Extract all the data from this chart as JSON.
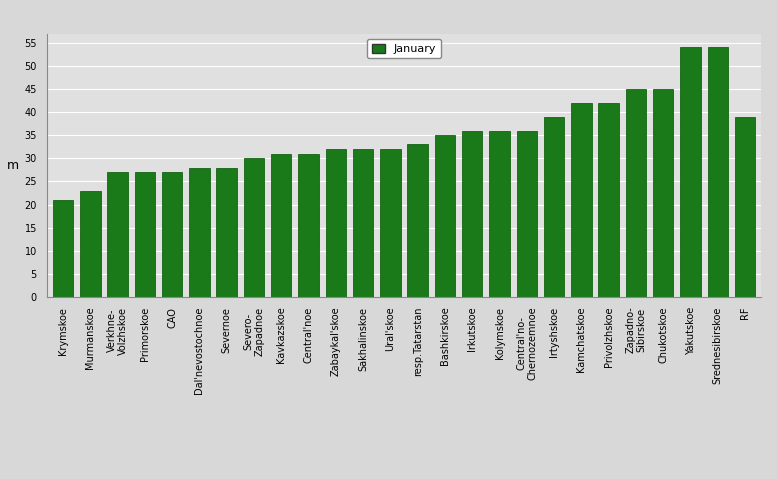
{
  "categories": [
    "Krymskoe",
    "Murmanskoe",
    "Verkhne-\nVolzhskoe",
    "Primorskoe",
    "CAO",
    "Dal'nevostochnoe",
    "Severnoe",
    "Severo-\nZapadnoe",
    "Kavkazskoe",
    "Central'noe",
    "Zabaykal'skoe",
    "Sakhalinskoe",
    "Ural'skoe",
    "resp.Tatarstan",
    "Bashkirskoe",
    "Irkutskoe",
    "Kolymskoe",
    "Central'no-\nChernozemnoe",
    "Irtyshskoe",
    "Kamchatskoe",
    "Privolzhskoe",
    "Zapadno-\nSibirskoe",
    "Chukotskoe",
    "Yakutskoe",
    "Srednesibirskoe",
    "RF"
  ],
  "values": [
    21,
    23,
    27,
    27,
    27,
    28,
    28,
    30,
    31,
    31,
    32,
    32,
    32,
    33,
    35,
    36,
    36,
    36,
    39,
    42,
    42,
    45,
    45,
    54,
    54,
    39
  ],
  "bar_color": "#1a7a1a",
  "bar_edge_color": "#005500",
  "ylabel": "m",
  "ylim": [
    0,
    57
  ],
  "yticks": [
    0,
    5,
    10,
    15,
    20,
    25,
    30,
    35,
    40,
    45,
    50,
    55
  ],
  "legend_label": "January",
  "legend_color": "#1a7a1a",
  "background_color": "#d8d8d8",
  "plot_background": "#e0e0e0",
  "grid_color": "#ffffff",
  "tick_fontsize": 7,
  "ylabel_fontsize": 9
}
